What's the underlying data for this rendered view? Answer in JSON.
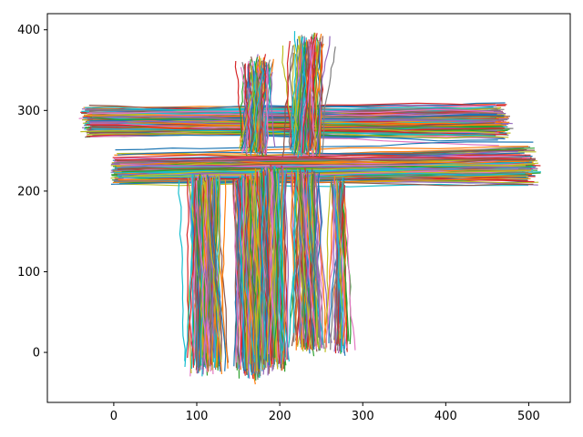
{
  "chart_data": {
    "type": "line",
    "title": "",
    "xlabel": "",
    "ylabel": "",
    "xlim": [
      -80,
      550
    ],
    "ylim": [
      -62,
      420
    ],
    "xticks": [
      0,
      100,
      200,
      300,
      400,
      500
    ],
    "yticks": [
      0,
      100,
      200,
      300,
      400
    ],
    "xtick_labels": [
      "0",
      "100",
      "200",
      "300",
      "400",
      "500"
    ],
    "ytick_labels": [
      "0",
      "100",
      "200",
      "300",
      "400"
    ],
    "grid": false,
    "legend": "none",
    "palette": [
      "#1f77b4",
      "#ff7f0e",
      "#2ca02c",
      "#d62728",
      "#9467bd",
      "#8c564b",
      "#e377c2",
      "#7f7f7f",
      "#bcbd22",
      "#17becf"
    ],
    "series_groups": [
      {
        "name": "",
        "count": 160,
        "start": [
          -30,
          286
        ],
        "end": [
          465,
          286
        ],
        "spread": [
          0,
          14
        ]
      },
      {
        "name": "",
        "count": 160,
        "start": [
          5,
          226
        ],
        "end": [
          500,
          232
        ],
        "spread": [
          0,
          14
        ]
      },
      {
        "name": "",
        "count": 110,
        "start": [
          110,
          215
        ],
        "end": [
          115,
          -15
        ],
        "spread": [
          18,
          0
        ]
      },
      {
        "name": "",
        "count": 110,
        "start": [
          165,
          215
        ],
        "end": [
          170,
          -20
        ],
        "spread": [
          16,
          0
        ]
      },
      {
        "name": "",
        "count": 90,
        "start": [
          190,
          225
        ],
        "end": [
          195,
          -10
        ],
        "spread": [
          14,
          0
        ]
      },
      {
        "name": "",
        "count": 80,
        "start": [
          230,
          220
        ],
        "end": [
          235,
          10
        ],
        "spread": [
          14,
          0
        ]
      },
      {
        "name": "",
        "count": 40,
        "start": [
          270,
          210
        ],
        "end": [
          272,
          10
        ],
        "spread": [
          6,
          0
        ]
      },
      {
        "name": "",
        "count": 90,
        "start": [
          170,
          250
        ],
        "end": [
          175,
          355
        ],
        "spread": [
          12,
          0
        ]
      },
      {
        "name": "",
        "count": 90,
        "start": [
          230,
          250
        ],
        "end": [
          235,
          385
        ],
        "spread": [
          14,
          0
        ]
      }
    ]
  }
}
